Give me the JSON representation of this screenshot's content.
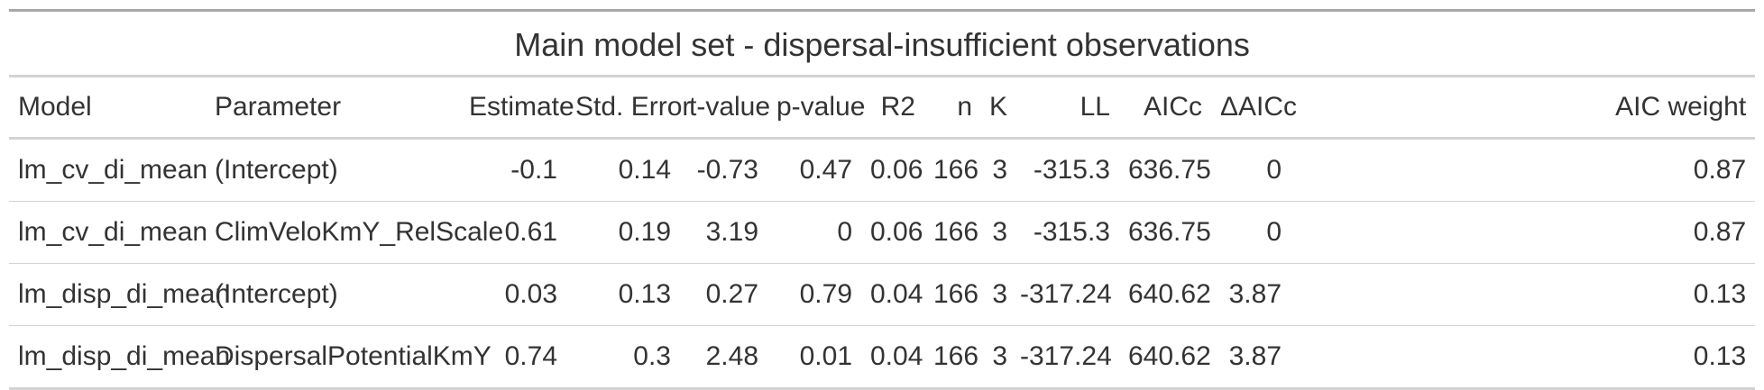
{
  "table": {
    "title": "Main model set - dispersal-insufficient observations",
    "columns": [
      "Model",
      "Parameter",
      "Estimate",
      "Std. Error",
      "t-value",
      "p-value",
      "R2",
      "n",
      "K",
      "LL",
      "AICc",
      "ΔAICc",
      "AIC weight"
    ],
    "rows": [
      [
        "lm_cv_di_mean",
        "(Intercept)",
        "-0.1",
        "0.14",
        "-0.73",
        "0.47",
        "0.06",
        "166",
        "3",
        "-315.3",
        "636.75",
        "0",
        "0.87"
      ],
      [
        "lm_cv_di_mean",
        "ClimVeloKmY_RelScale",
        "0.61",
        "0.19",
        "3.19",
        "0",
        "0.06",
        "166",
        "3",
        "-315.3",
        "636.75",
        "0",
        "0.87"
      ],
      [
        "lm_disp_di_mean",
        "(Intercept)",
        "0.03",
        "0.13",
        "0.27",
        "0.79",
        "0.04",
        "166",
        "3",
        "-317.24",
        "640.62",
        "3.87",
        "0.13"
      ],
      [
        "lm_disp_di_mean",
        "DispersalPotentialKmY",
        "0.74",
        "0.3",
        "2.48",
        "0.01",
        "0.04",
        "166",
        "3",
        "-317.24",
        "640.62",
        "3.87",
        "0.13"
      ]
    ]
  }
}
